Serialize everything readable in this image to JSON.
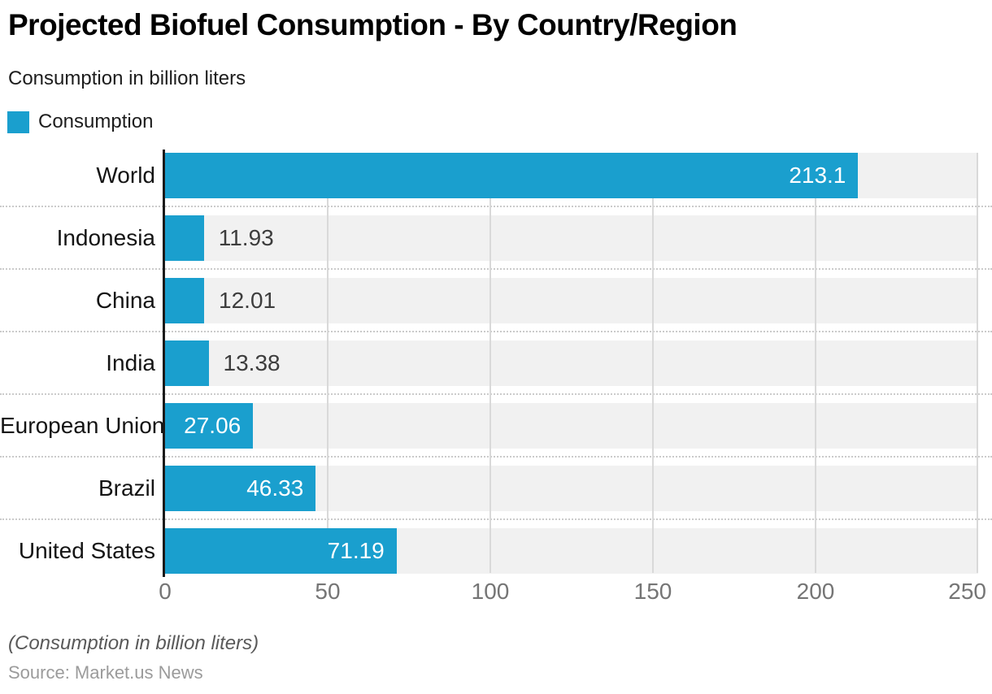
{
  "header": {
    "title": "Projected Biofuel Consumption - By Country/Region",
    "subtitle": "Consumption in billion liters"
  },
  "legend": {
    "label": "Consumption"
  },
  "footer": {
    "note": "(Consumption in billion liters)",
    "source": "Source: Market.us News"
  },
  "colors": {
    "bar": "#1a9fce",
    "track": "#f1f1f1",
    "gridline": "#d9d9d9",
    "axis": "#1a1a1a",
    "tick_text": "#757575",
    "value_inside_text": "#ffffff",
    "value_outside_text": "#3d3d3d"
  },
  "chart_data": {
    "type": "bar",
    "orientation": "horizontal",
    "title": "Projected Biofuel Consumption - By Country/Region",
    "subtitle": "Consumption in billion liters",
    "categories": [
      "World",
      "Indonesia",
      "China",
      "India",
      "European Union",
      "Brazil",
      "United States"
    ],
    "series": [
      {
        "name": "Consumption",
        "values": [
          213.1,
          11.93,
          12.01,
          13.38,
          27.06,
          46.33,
          71.19
        ]
      }
    ],
    "value_labels": [
      "213.1",
      "11.93",
      "12.01",
      "13.38",
      "27.06",
      "46.33",
      "71.19"
    ],
    "xlabel": "",
    "ylabel": "",
    "xlim": [
      0,
      250
    ],
    "xticks": [
      "0",
      "50",
      "100",
      "150",
      "200",
      "250"
    ],
    "grid": true,
    "legend_position": "top-left",
    "note": "(Consumption in billion liters)",
    "source": "Source: Market.us News"
  }
}
